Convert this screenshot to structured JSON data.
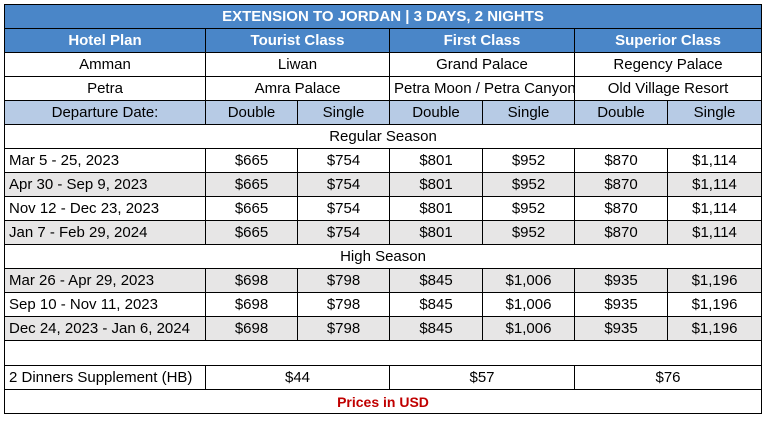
{
  "title": "EXTENSION TO JORDAN | 3 DAYS, 2 NIGHTS",
  "header": {
    "hotel_plan": "Hotel Plan",
    "tourist": "Tourist Class",
    "first": "First Class",
    "superior": "Superior Class"
  },
  "hotels": [
    {
      "city": "Amman",
      "tourist": "Liwan",
      "first": "Grand Palace",
      "superior": "Regency Palace"
    },
    {
      "city": "Petra",
      "tourist": "Amra Palace",
      "first": "Petra Moon / Petra Canyon",
      "superior": "Old Village Resort"
    }
  ],
  "subheader": {
    "departure": "Departure Date:",
    "double": "Double",
    "single": "Single"
  },
  "regular_label": "Regular Season",
  "regular_rows": [
    {
      "date": "Mar 5 - 25, 2023",
      "td": "$665",
      "ts": "$754",
      "fd": "$801",
      "fs": "$952",
      "sd": "$870",
      "ss": "$1,114"
    },
    {
      "date": "Apr 30 - Sep 9, 2023",
      "td": "$665",
      "ts": "$754",
      "fd": "$801",
      "fs": "$952",
      "sd": "$870",
      "ss": "$1,114"
    },
    {
      "date": "Nov 12 - Dec 23, 2023",
      "td": "$665",
      "ts": "$754",
      "fd": "$801",
      "fs": "$952",
      "sd": "$870",
      "ss": "$1,114"
    },
    {
      "date": "Jan 7 - Feb 29, 2024",
      "td": "$665",
      "ts": "$754",
      "fd": "$801",
      "fs": "$952",
      "sd": "$870",
      "ss": "$1,114"
    }
  ],
  "high_label": "High Season",
  "high_rows": [
    {
      "date": "Mar 26 - Apr 29, 2023",
      "td": "$698",
      "ts": "$798",
      "fd": "$845",
      "fs": "$1,006",
      "sd": "$935",
      "ss": "$1,196"
    },
    {
      "date": "Sep 10 - Nov 11, 2023",
      "td": "$698",
      "ts": "$798",
      "fd": "$845",
      "fs": "$1,006",
      "sd": "$935",
      "ss": "$1,196"
    },
    {
      "date": "Dec 24, 2023 - Jan 6, 2024",
      "td": "$698",
      "ts": "$798",
      "fd": "$845",
      "fs": "$1,006",
      "sd": "$935",
      "ss": "$1,196"
    }
  ],
  "supplement": {
    "label": "2 Dinners Supplement (HB)",
    "tourist": "$44",
    "first": "$57",
    "superior": "$76"
  },
  "footer": "Prices in USD",
  "colors": {
    "header_bg": "#4a86c8",
    "subheader_bg": "#b7cbe5",
    "shade_bg": "#e7e6e6",
    "footer_text": "#c00000"
  }
}
